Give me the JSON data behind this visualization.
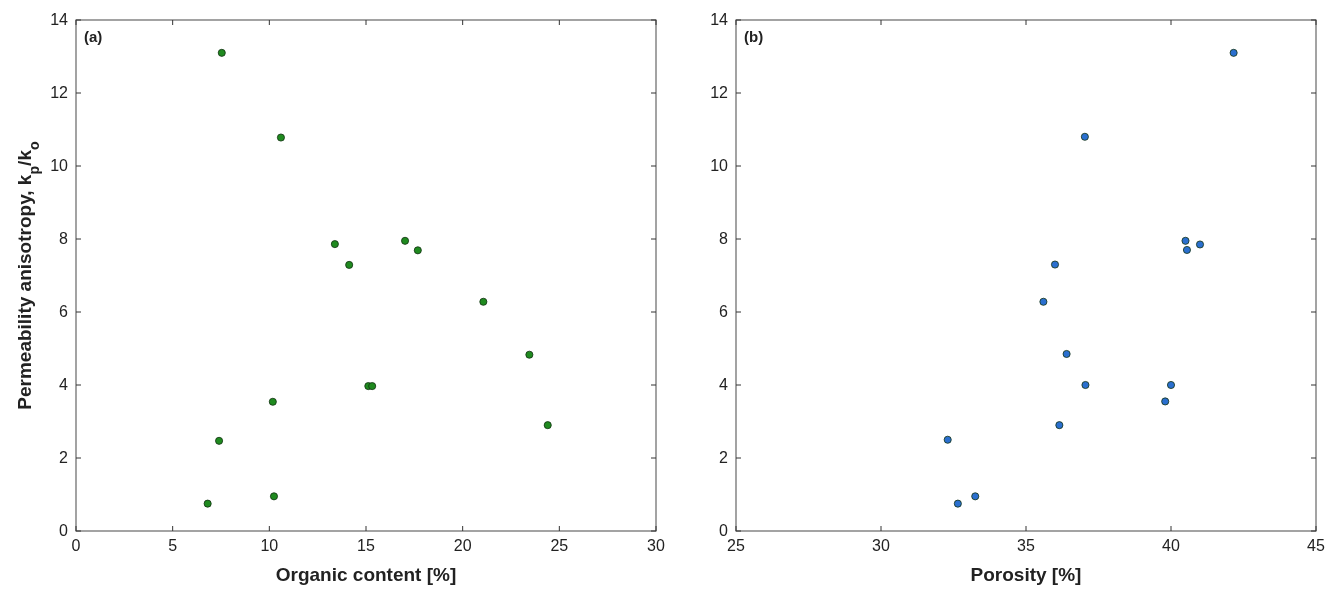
{
  "chart_data": [
    {
      "type": "scatter",
      "xlabel": "Organic content [%]",
      "ylabel": "Permeability anisotropy, k$_{p}$/k$_{o}$",
      "annotations": [
        "(a)"
      ],
      "xlim": [
        0,
        30
      ],
      "xticks": [
        0,
        5,
        10,
        15,
        20,
        25,
        30
      ],
      "ylim": [
        0,
        14
      ],
      "yticks": [
        0,
        2,
        4,
        6,
        8,
        10,
        12,
        14
      ],
      "marker": "circle",
      "grid": false,
      "series": [
        {
          "color": "#1f8a1f",
          "x": [
            7.54,
            10.6,
            13.39,
            14.13,
            17.02,
            17.68,
            21.07,
            23.45,
            24.4,
            15.12,
            15.32,
            10.18,
            7.4,
            10.24,
            6.81
          ],
          "values": [
            13.1,
            10.78,
            7.86,
            7.29,
            7.95,
            7.69,
            6.28,
            4.83,
            2.9,
            3.97,
            3.97,
            3.54,
            2.47,
            0.95,
            0.75
          ]
        }
      ]
    },
    {
      "type": "scatter",
      "xlabel": "Porosity [%]",
      "annotations": [
        "(b)"
      ],
      "xlim": [
        25,
        45
      ],
      "xticks": [
        25,
        30,
        35,
        40,
        45
      ],
      "ylim": [
        0,
        14
      ],
      "yticks": [
        0,
        2,
        4,
        6,
        8,
        10,
        12,
        14
      ],
      "marker": "circle",
      "grid": false,
      "series": [
        {
          "color": "#2a6fcf",
          "x": [
            42.16,
            37.03,
            36.0,
            35.6,
            36.4,
            37.05,
            36.15,
            40.0,
            39.8,
            40.5,
            40.55,
            41.0,
            32.3,
            32.65,
            33.25
          ],
          "values": [
            13.1,
            10.8,
            7.3,
            6.28,
            4.85,
            4.0,
            2.9,
            4.0,
            3.55,
            7.95,
            7.7,
            7.85,
            2.5,
            0.75,
            0.95
          ]
        }
      ]
    }
  ]
}
